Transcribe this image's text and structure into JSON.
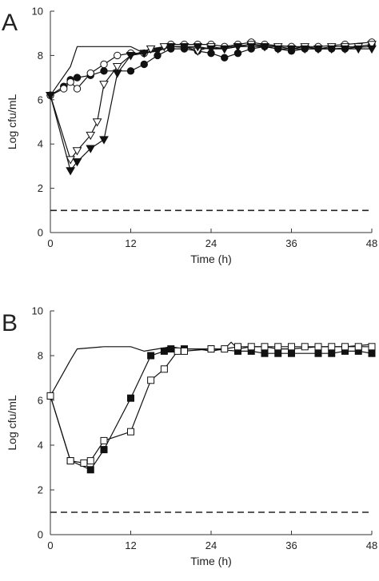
{
  "chart_data": [
    {
      "panel_label": "A",
      "type": "line",
      "xlabel": "Time (h)",
      "ylabel": "Log cfu/mL",
      "xlim": [
        0,
        48
      ],
      "ylim": [
        0,
        10
      ],
      "xticks": [
        0,
        12,
        24,
        36,
        48
      ],
      "yticks": [
        0,
        2,
        4,
        6,
        8,
        10
      ],
      "grid": false,
      "legend": "none",
      "reference_line": {
        "y": 1,
        "style": "dashed"
      },
      "series": [
        {
          "marker": "none",
          "points": [
            [
              0,
              6.2
            ],
            [
              3,
              7.5
            ],
            [
              4,
              8.4
            ],
            [
              8,
              8.4
            ],
            [
              12,
              8.4
            ],
            [
              14,
              8.1
            ],
            [
              18,
              8.4
            ],
            [
              24,
              8.3
            ],
            [
              30,
              8.5
            ],
            [
              36,
              8.4
            ],
            [
              42,
              8.3
            ],
            [
              48,
              8.4
            ]
          ]
        },
        {
          "marker": "circle-filled",
          "points": [
            [
              0,
              6.2
            ],
            [
              2,
              6.6
            ],
            [
              3,
              6.9
            ],
            [
              4,
              7.0
            ],
            [
              6,
              7.1
            ],
            [
              8,
              7.3
            ],
            [
              12,
              7.3
            ],
            [
              14,
              7.6
            ],
            [
              16,
              8.0
            ],
            [
              18,
              8.3
            ],
            [
              20,
              8.3
            ],
            [
              22,
              8.2
            ],
            [
              24,
              8.1
            ],
            [
              26,
              7.9
            ],
            [
              28,
              8.1
            ],
            [
              30,
              8.3
            ],
            [
              32,
              8.4
            ],
            [
              34,
              8.3
            ],
            [
              36,
              8.2
            ],
            [
              38,
              8.3
            ],
            [
              40,
              8.3
            ],
            [
              42,
              8.3
            ],
            [
              44,
              8.3
            ],
            [
              46,
              8.4
            ],
            [
              48,
              8.5
            ]
          ]
        },
        {
          "marker": "circle-open",
          "points": [
            [
              0,
              6.2
            ],
            [
              2,
              6.5
            ],
            [
              3,
              6.8
            ],
            [
              4,
              6.5
            ],
            [
              6,
              7.2
            ],
            [
              8,
              7.6
            ],
            [
              10,
              8.0
            ],
            [
              12,
              8.1
            ],
            [
              14,
              8.1
            ],
            [
              18,
              8.5
            ],
            [
              20,
              8.5
            ],
            [
              22,
              8.5
            ],
            [
              24,
              8.5
            ],
            [
              26,
              8.4
            ],
            [
              28,
              8.5
            ],
            [
              30,
              8.6
            ],
            [
              32,
              8.5
            ],
            [
              36,
              8.4
            ],
            [
              40,
              8.4
            ],
            [
              44,
              8.5
            ],
            [
              48,
              8.6
            ]
          ]
        },
        {
          "marker": "triangle-down-open",
          "points": [
            [
              0,
              6.2
            ],
            [
              3,
              3.3
            ],
            [
              4,
              3.7
            ],
            [
              6,
              4.4
            ],
            [
              7,
              5.0
            ],
            [
              8,
              6.7
            ],
            [
              10,
              7.5
            ],
            [
              12,
              8.0
            ],
            [
              15,
              8.3
            ],
            [
              17,
              8.4
            ],
            [
              18,
              8.4
            ],
            [
              20,
              8.4
            ],
            [
              22,
              8.2
            ],
            [
              24,
              8.4
            ],
            [
              26,
              8.3
            ],
            [
              28,
              8.4
            ],
            [
              30,
              8.5
            ],
            [
              32,
              8.4
            ],
            [
              34,
              8.4
            ],
            [
              36,
              8.3
            ],
            [
              38,
              8.4
            ],
            [
              40,
              8.3
            ],
            [
              42,
              8.4
            ],
            [
              44,
              8.4
            ],
            [
              46,
              8.4
            ],
            [
              48,
              8.5
            ]
          ]
        },
        {
          "marker": "triangle-down-filled",
          "points": [
            [
              0,
              6.2
            ],
            [
              3,
              2.8
            ],
            [
              4,
              3.2
            ],
            [
              6,
              3.8
            ],
            [
              8,
              4.2
            ],
            [
              10,
              7.2
            ],
            [
              12,
              8.0
            ],
            [
              14,
              8.1
            ],
            [
              16,
              8.2
            ],
            [
              18,
              8.4
            ],
            [
              20,
              8.4
            ],
            [
              22,
              8.4
            ],
            [
              24,
              8.3
            ],
            [
              26,
              8.3
            ],
            [
              28,
              8.4
            ],
            [
              30,
              8.4
            ],
            [
              32,
              8.4
            ],
            [
              34,
              8.3
            ],
            [
              36,
              8.3
            ],
            [
              38,
              8.3
            ],
            [
              40,
              8.3
            ],
            [
              42,
              8.3
            ],
            [
              44,
              8.3
            ],
            [
              46,
              8.3
            ],
            [
              48,
              8.3
            ]
          ]
        }
      ]
    },
    {
      "panel_label": "B",
      "type": "line",
      "xlabel": "Time (h)",
      "ylabel": "Log cfu/mL",
      "xlim": [
        0,
        48
      ],
      "ylim": [
        0,
        10
      ],
      "xticks": [
        0,
        12,
        24,
        36,
        48
      ],
      "yticks": [
        0,
        2,
        4,
        6,
        8,
        10
      ],
      "grid": false,
      "legend": "none",
      "reference_line": {
        "y": 1,
        "style": "dashed"
      },
      "series": [
        {
          "marker": "none",
          "points": [
            [
              0,
              6.2
            ],
            [
              3,
              7.8
            ],
            [
              4,
              8.3
            ],
            [
              8,
              8.4
            ],
            [
              12,
              8.4
            ],
            [
              14,
              8.2
            ],
            [
              16,
              8.3
            ],
            [
              18,
              8.4
            ],
            [
              20,
              8.3
            ],
            [
              22,
              8.3
            ],
            [
              24,
              8.2
            ],
            [
              26,
              8.3
            ],
            [
              27,
              8.6
            ],
            [
              28,
              8.3
            ],
            [
              30,
              8.4
            ],
            [
              32,
              8.4
            ],
            [
              34,
              8.3
            ],
            [
              36,
              8.3
            ],
            [
              40,
              8.4
            ],
            [
              44,
              8.4
            ],
            [
              48,
              8.5
            ]
          ]
        },
        {
          "marker": "square-filled",
          "points": [
            [
              0,
              6.2
            ],
            [
              3,
              3.3
            ],
            [
              6,
              2.9
            ],
            [
              8,
              3.8
            ],
            [
              12,
              6.1
            ],
            [
              15,
              8.0
            ],
            [
              17,
              8.2
            ],
            [
              18,
              8.3
            ],
            [
              20,
              8.3
            ],
            [
              24,
              8.3
            ],
            [
              28,
              8.2
            ],
            [
              30,
              8.2
            ],
            [
              32,
              8.1
            ],
            [
              34,
              8.1
            ],
            [
              36,
              8.1
            ],
            [
              40,
              8.1
            ],
            [
              42,
              8.1
            ],
            [
              44,
              8.2
            ],
            [
              46,
              8.2
            ],
            [
              48,
              8.1
            ]
          ]
        },
        {
          "marker": "square-open",
          "points": [
            [
              0,
              6.2
            ],
            [
              3,
              3.3
            ],
            [
              5,
              3.2
            ],
            [
              6,
              3.3
            ],
            [
              8,
              4.2
            ],
            [
              12,
              4.6
            ],
            [
              15,
              6.9
            ],
            [
              17,
              7.4
            ],
            [
              19,
              8.2
            ],
            [
              20,
              8.2
            ],
            [
              24,
              8.3
            ],
            [
              26,
              8.3
            ],
            [
              28,
              8.4
            ],
            [
              30,
              8.4
            ],
            [
              32,
              8.4
            ],
            [
              34,
              8.4
            ],
            [
              36,
              8.4
            ],
            [
              38,
              8.4
            ],
            [
              40,
              8.4
            ],
            [
              42,
              8.4
            ],
            [
              44,
              8.4
            ],
            [
              46,
              8.4
            ],
            [
              48,
              8.4
            ]
          ]
        }
      ]
    }
  ]
}
